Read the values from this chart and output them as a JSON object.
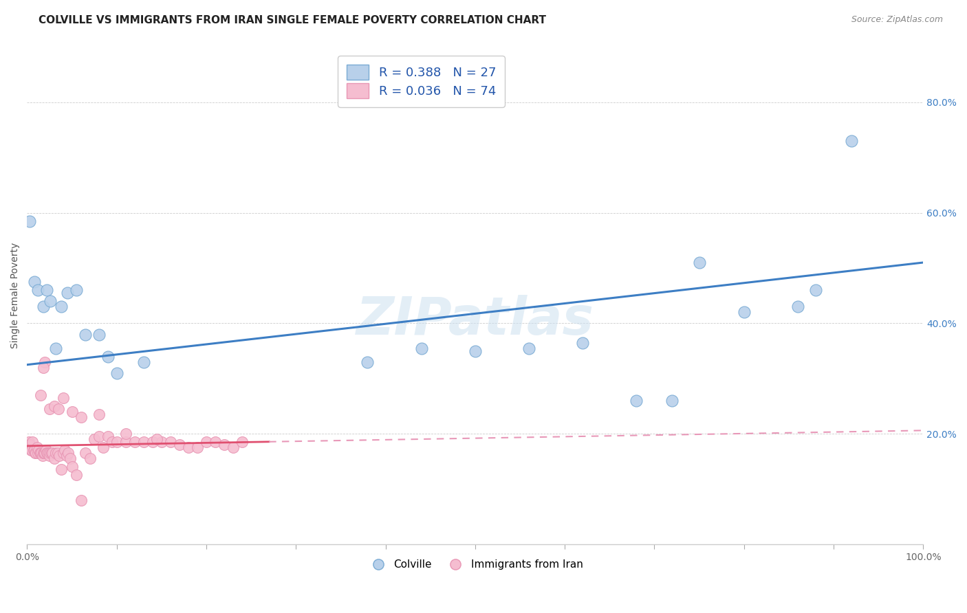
{
  "title": "COLVILLE VS IMMIGRANTS FROM IRAN SINGLE FEMALE POVERTY CORRELATION CHART",
  "source": "Source: ZipAtlas.com",
  "ylabel": "Single Female Poverty",
  "background_color": "#ffffff",
  "watermark": "ZIPatlas",
  "legend_r1": "R = 0.388",
  "legend_n1": "N = 27",
  "legend_r2": "R = 0.036",
  "legend_n2": "N = 74",
  "colville_color": "#b8d0ea",
  "colville_edge": "#7aabd4",
  "iran_color": "#f5bdd0",
  "iran_edge": "#e896b4",
  "colville_line_color": "#3d7ec4",
  "iran_line_solid_color": "#e05070",
  "iran_line_dash_color": "#e898b8",
  "colville_points_x": [
    0.003,
    0.008,
    0.012,
    0.018,
    0.022,
    0.026,
    0.032,
    0.038,
    0.045,
    0.055,
    0.065,
    0.08,
    0.09,
    0.1,
    0.13,
    0.38,
    0.44,
    0.5,
    0.56,
    0.62,
    0.68,
    0.72,
    0.75,
    0.8,
    0.86,
    0.88,
    0.92
  ],
  "colville_points_y": [
    0.585,
    0.475,
    0.46,
    0.43,
    0.46,
    0.44,
    0.355,
    0.43,
    0.455,
    0.46,
    0.38,
    0.38,
    0.34,
    0.31,
    0.33,
    0.33,
    0.355,
    0.35,
    0.355,
    0.365,
    0.26,
    0.26,
    0.51,
    0.42,
    0.43,
    0.46,
    0.73
  ],
  "iran_points_x": [
    0.002,
    0.003,
    0.004,
    0.005,
    0.006,
    0.007,
    0.008,
    0.009,
    0.01,
    0.011,
    0.012,
    0.013,
    0.014,
    0.015,
    0.016,
    0.017,
    0.018,
    0.019,
    0.02,
    0.021,
    0.022,
    0.023,
    0.024,
    0.025,
    0.026,
    0.027,
    0.028,
    0.03,
    0.032,
    0.034,
    0.036,
    0.038,
    0.04,
    0.042,
    0.044,
    0.046,
    0.048,
    0.05,
    0.055,
    0.06,
    0.065,
    0.07,
    0.075,
    0.08,
    0.085,
    0.09,
    0.095,
    0.1,
    0.11,
    0.12,
    0.13,
    0.14,
    0.15,
    0.16,
    0.17,
    0.18,
    0.19,
    0.2,
    0.21,
    0.22,
    0.23,
    0.24,
    0.025,
    0.03,
    0.035,
    0.04,
    0.05,
    0.06,
    0.08,
    0.11,
    0.145,
    0.02,
    0.015,
    0.018
  ],
  "iran_points_y": [
    0.185,
    0.18,
    0.17,
    0.17,
    0.185,
    0.17,
    0.17,
    0.165,
    0.165,
    0.175,
    0.165,
    0.17,
    0.165,
    0.165,
    0.165,
    0.16,
    0.165,
    0.165,
    0.165,
    0.17,
    0.165,
    0.165,
    0.165,
    0.16,
    0.165,
    0.165,
    0.165,
    0.155,
    0.165,
    0.165,
    0.16,
    0.135,
    0.165,
    0.17,
    0.16,
    0.165,
    0.155,
    0.14,
    0.125,
    0.08,
    0.165,
    0.155,
    0.19,
    0.195,
    0.175,
    0.195,
    0.185,
    0.185,
    0.185,
    0.185,
    0.185,
    0.185,
    0.185,
    0.185,
    0.18,
    0.175,
    0.175,
    0.185,
    0.185,
    0.18,
    0.175,
    0.185,
    0.245,
    0.25,
    0.245,
    0.265,
    0.24,
    0.23,
    0.235,
    0.2,
    0.19,
    0.33,
    0.27,
    0.32
  ],
  "iran_solid_xlim": 0.27,
  "colville_intercept": 0.325,
  "colville_slope": 0.185,
  "iran_intercept": 0.178,
  "iran_slope": 0.028,
  "title_fontsize": 11,
  "axis_label_fontsize": 10,
  "tick_fontsize": 10,
  "legend_fontsize": 13
}
